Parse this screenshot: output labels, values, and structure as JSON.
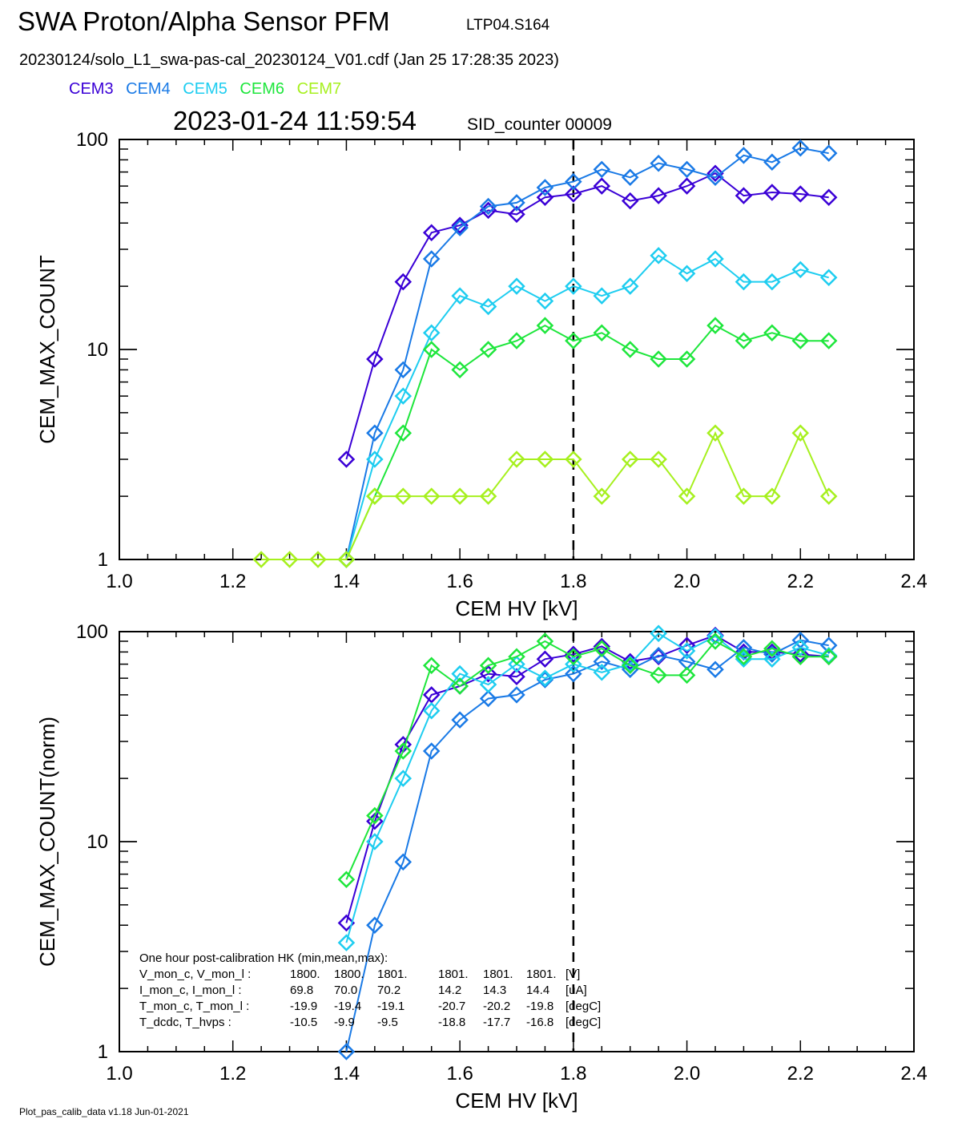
{
  "header": {
    "title": "SWA Proton/Alpha Sensor PFM",
    "test_id": "LTP04.S164",
    "file_line": "20230124/solo_L1_swa-pas-cal_20230124_V01.cdf  (Jan 25 17:28:35 2023)",
    "timestamp": "2023-01-24 11:59:54",
    "sid_counter": "SID_counter 00009"
  },
  "legend": [
    {
      "name": "CEM3",
      "color": "#3a00d6"
    },
    {
      "name": "CEM4",
      "color": "#1a7ae6"
    },
    {
      "name": "CEM5",
      "color": "#1ecdf0"
    },
    {
      "name": "CEM6",
      "color": "#1ee63c"
    },
    {
      "name": "CEM7",
      "color": "#a6f01e"
    }
  ],
  "footer": "Plot_pas_calib_data v1.18 Jun-01-2021",
  "hk_box": {
    "title": "One hour post-calibration HK (min,mean,max):",
    "rows": [
      {
        "label": "V_mon_c, V_mon_l :",
        "a": [
          "1800.",
          "1800.",
          "1801."
        ],
        "b": [
          "1801.",
          "1801.",
          "1801."
        ],
        "unit": "[V]"
      },
      {
        "label": "I_mon_c,  I_mon_l :",
        "a": [
          "69.8",
          "70.0",
          "70.2"
        ],
        "b": [
          "14.2",
          "14.3",
          "14.4"
        ],
        "unit": "[uA]"
      },
      {
        "label": "T_mon_c, T_mon_l :",
        "a": [
          "-19.9",
          "-19.4",
          "-19.1"
        ],
        "b": [
          "-20.7",
          "-20.2",
          "-19.8"
        ],
        "unit": "[degC]"
      },
      {
        "label": "T_dcdc,    T_hvps :",
        "a": [
          "-10.5",
          "-9.9",
          "-9.5"
        ],
        "b": [
          "-18.8",
          "-17.7",
          "-16.8"
        ],
        "unit": "[degC]"
      }
    ]
  },
  "chart_data": [
    {
      "type": "line",
      "xlabel": "CEM HV [kV]",
      "ylabel": "CEM_MAX_COUNT",
      "xlim": [
        1.0,
        2.4
      ],
      "ylim": [
        1,
        100
      ],
      "yscale": "log",
      "xticks": [
        "1.0",
        "1.2",
        "1.4",
        "1.6",
        "1.8",
        "2.0",
        "2.2",
        "2.4"
      ],
      "yticks": [
        "1",
        "10",
        "100"
      ],
      "vline": 1.8,
      "marker": "diamond",
      "series": [
        {
          "name": "CEM3",
          "color": "#3a00d6",
          "x": [
            1.4,
            1.45,
            1.5,
            1.55,
            1.6,
            1.65,
            1.7,
            1.75,
            1.8,
            1.85,
            1.9,
            1.95,
            2.0,
            2.05,
            2.1,
            2.15,
            2.2,
            2.25
          ],
          "y": [
            3,
            9,
            21,
            36,
            39,
            46,
            44,
            53,
            55,
            60,
            51,
            54,
            60,
            69,
            54,
            56,
            55,
            53
          ]
        },
        {
          "name": "CEM4",
          "color": "#1a7ae6",
          "x": [
            1.4,
            1.45,
            1.5,
            1.55,
            1.6,
            1.65,
            1.7,
            1.75,
            1.8,
            1.85,
            1.9,
            1.95,
            2.0,
            2.05,
            2.1,
            2.15,
            2.2,
            2.25
          ],
          "y": [
            1,
            4,
            8,
            27,
            38,
            48,
            50,
            59,
            63,
            72,
            66,
            77,
            72,
            66,
            84,
            78,
            91,
            86
          ]
        },
        {
          "name": "CEM5",
          "color": "#1ecdf0",
          "x": [
            1.4,
            1.45,
            1.5,
            1.55,
            1.6,
            1.65,
            1.7,
            1.75,
            1.8,
            1.85,
            1.9,
            1.95,
            2.0,
            2.05,
            2.1,
            2.15,
            2.2,
            2.25
          ],
          "y": [
            1,
            3,
            6,
            12,
            18,
            16,
            20,
            17,
            20,
            18,
            20,
            28,
            23,
            27,
            21,
            21,
            24,
            22
          ]
        },
        {
          "name": "CEM6",
          "color": "#1ee63c",
          "x": [
            1.4,
            1.45,
            1.5,
            1.55,
            1.6,
            1.65,
            1.7,
            1.75,
            1.8,
            1.85,
            1.9,
            1.95,
            2.0,
            2.05,
            2.1,
            2.15,
            2.2,
            2.25
          ],
          "y": [
            1,
            2,
            4,
            10,
            8,
            10,
            11,
            13,
            11,
            12,
            10,
            9,
            9,
            13,
            11,
            12,
            11,
            11
          ]
        },
        {
          "name": "CEM7",
          "color": "#a6f01e",
          "x": [
            1.25,
            1.3,
            1.35,
            1.4,
            1.45,
            1.5,
            1.55,
            1.6,
            1.65,
            1.7,
            1.75,
            1.8,
            1.85,
            1.9,
            1.95,
            2.0,
            2.05,
            2.1,
            2.15,
            2.2,
            2.25
          ],
          "y": [
            1,
            1,
            1,
            1,
            2,
            2,
            2,
            2,
            2,
            3,
            3,
            3,
            2,
            3,
            3,
            2,
            4,
            2,
            2,
            4,
            2
          ]
        }
      ]
    },
    {
      "type": "line",
      "xlabel": "CEM HV [kV]",
      "ylabel": "CEM_MAX_COUNT(norm)",
      "xlim": [
        1.0,
        2.4
      ],
      "ylim": [
        1,
        100
      ],
      "yscale": "log",
      "xticks": [
        "1.0",
        "1.2",
        "1.4",
        "1.6",
        "1.8",
        "2.0",
        "2.2",
        "2.4"
      ],
      "yticks": [
        "1",
        "10",
        "100"
      ],
      "vline": 1.8,
      "marker": "diamond",
      "series": [
        {
          "name": "CEM3",
          "color": "#3a00d6",
          "x": [
            1.4,
            1.45,
            1.5,
            1.55,
            1.6,
            1.65,
            1.7,
            1.75,
            1.8,
            1.85,
            1.9,
            1.95,
            2.0,
            2.05,
            2.1,
            2.15,
            2.2,
            2.25
          ],
          "y": [
            4.1,
            12.5,
            29,
            50,
            55,
            63,
            61,
            74,
            78,
            85,
            72,
            76,
            86,
            96,
            80,
            80,
            78,
            76
          ]
        },
        {
          "name": "CEM4",
          "color": "#1a7ae6",
          "x": [
            1.4,
            1.45,
            1.5,
            1.55,
            1.6,
            1.65,
            1.7,
            1.75,
            1.8,
            1.85,
            1.9,
            1.95,
            2.0,
            2.05,
            2.1,
            2.15,
            2.2,
            2.25
          ],
          "y": [
            1,
            4,
            8,
            27,
            38,
            48,
            50,
            59,
            63,
            72,
            66,
            77,
            72,
            66,
            84,
            78,
            91,
            86
          ]
        },
        {
          "name": "CEM5",
          "color": "#1ecdf0",
          "x": [
            1.4,
            1.45,
            1.5,
            1.55,
            1.6,
            1.65,
            1.7,
            1.75,
            1.8,
            1.85,
            1.9,
            1.95,
            2.0,
            2.05,
            2.1,
            2.15,
            2.2,
            2.25
          ],
          "y": [
            3.3,
            10,
            20,
            42,
            63,
            56,
            70,
            60,
            70,
            64,
            70,
            98,
            81,
            95,
            74,
            74,
            84,
            77
          ]
        },
        {
          "name": "CEM6",
          "color": "#1ee63c",
          "x": [
            1.4,
            1.45,
            1.5,
            1.55,
            1.6,
            1.65,
            1.7,
            1.75,
            1.8,
            1.85,
            1.9,
            1.95,
            2.0,
            2.05,
            2.1,
            2.15,
            2.2,
            2.25
          ],
          "y": [
            6.6,
            13.3,
            27,
            69,
            55,
            69,
            76,
            90,
            76,
            83,
            69,
            62,
            62,
            90,
            76,
            83,
            76,
            76
          ]
        }
      ]
    }
  ]
}
